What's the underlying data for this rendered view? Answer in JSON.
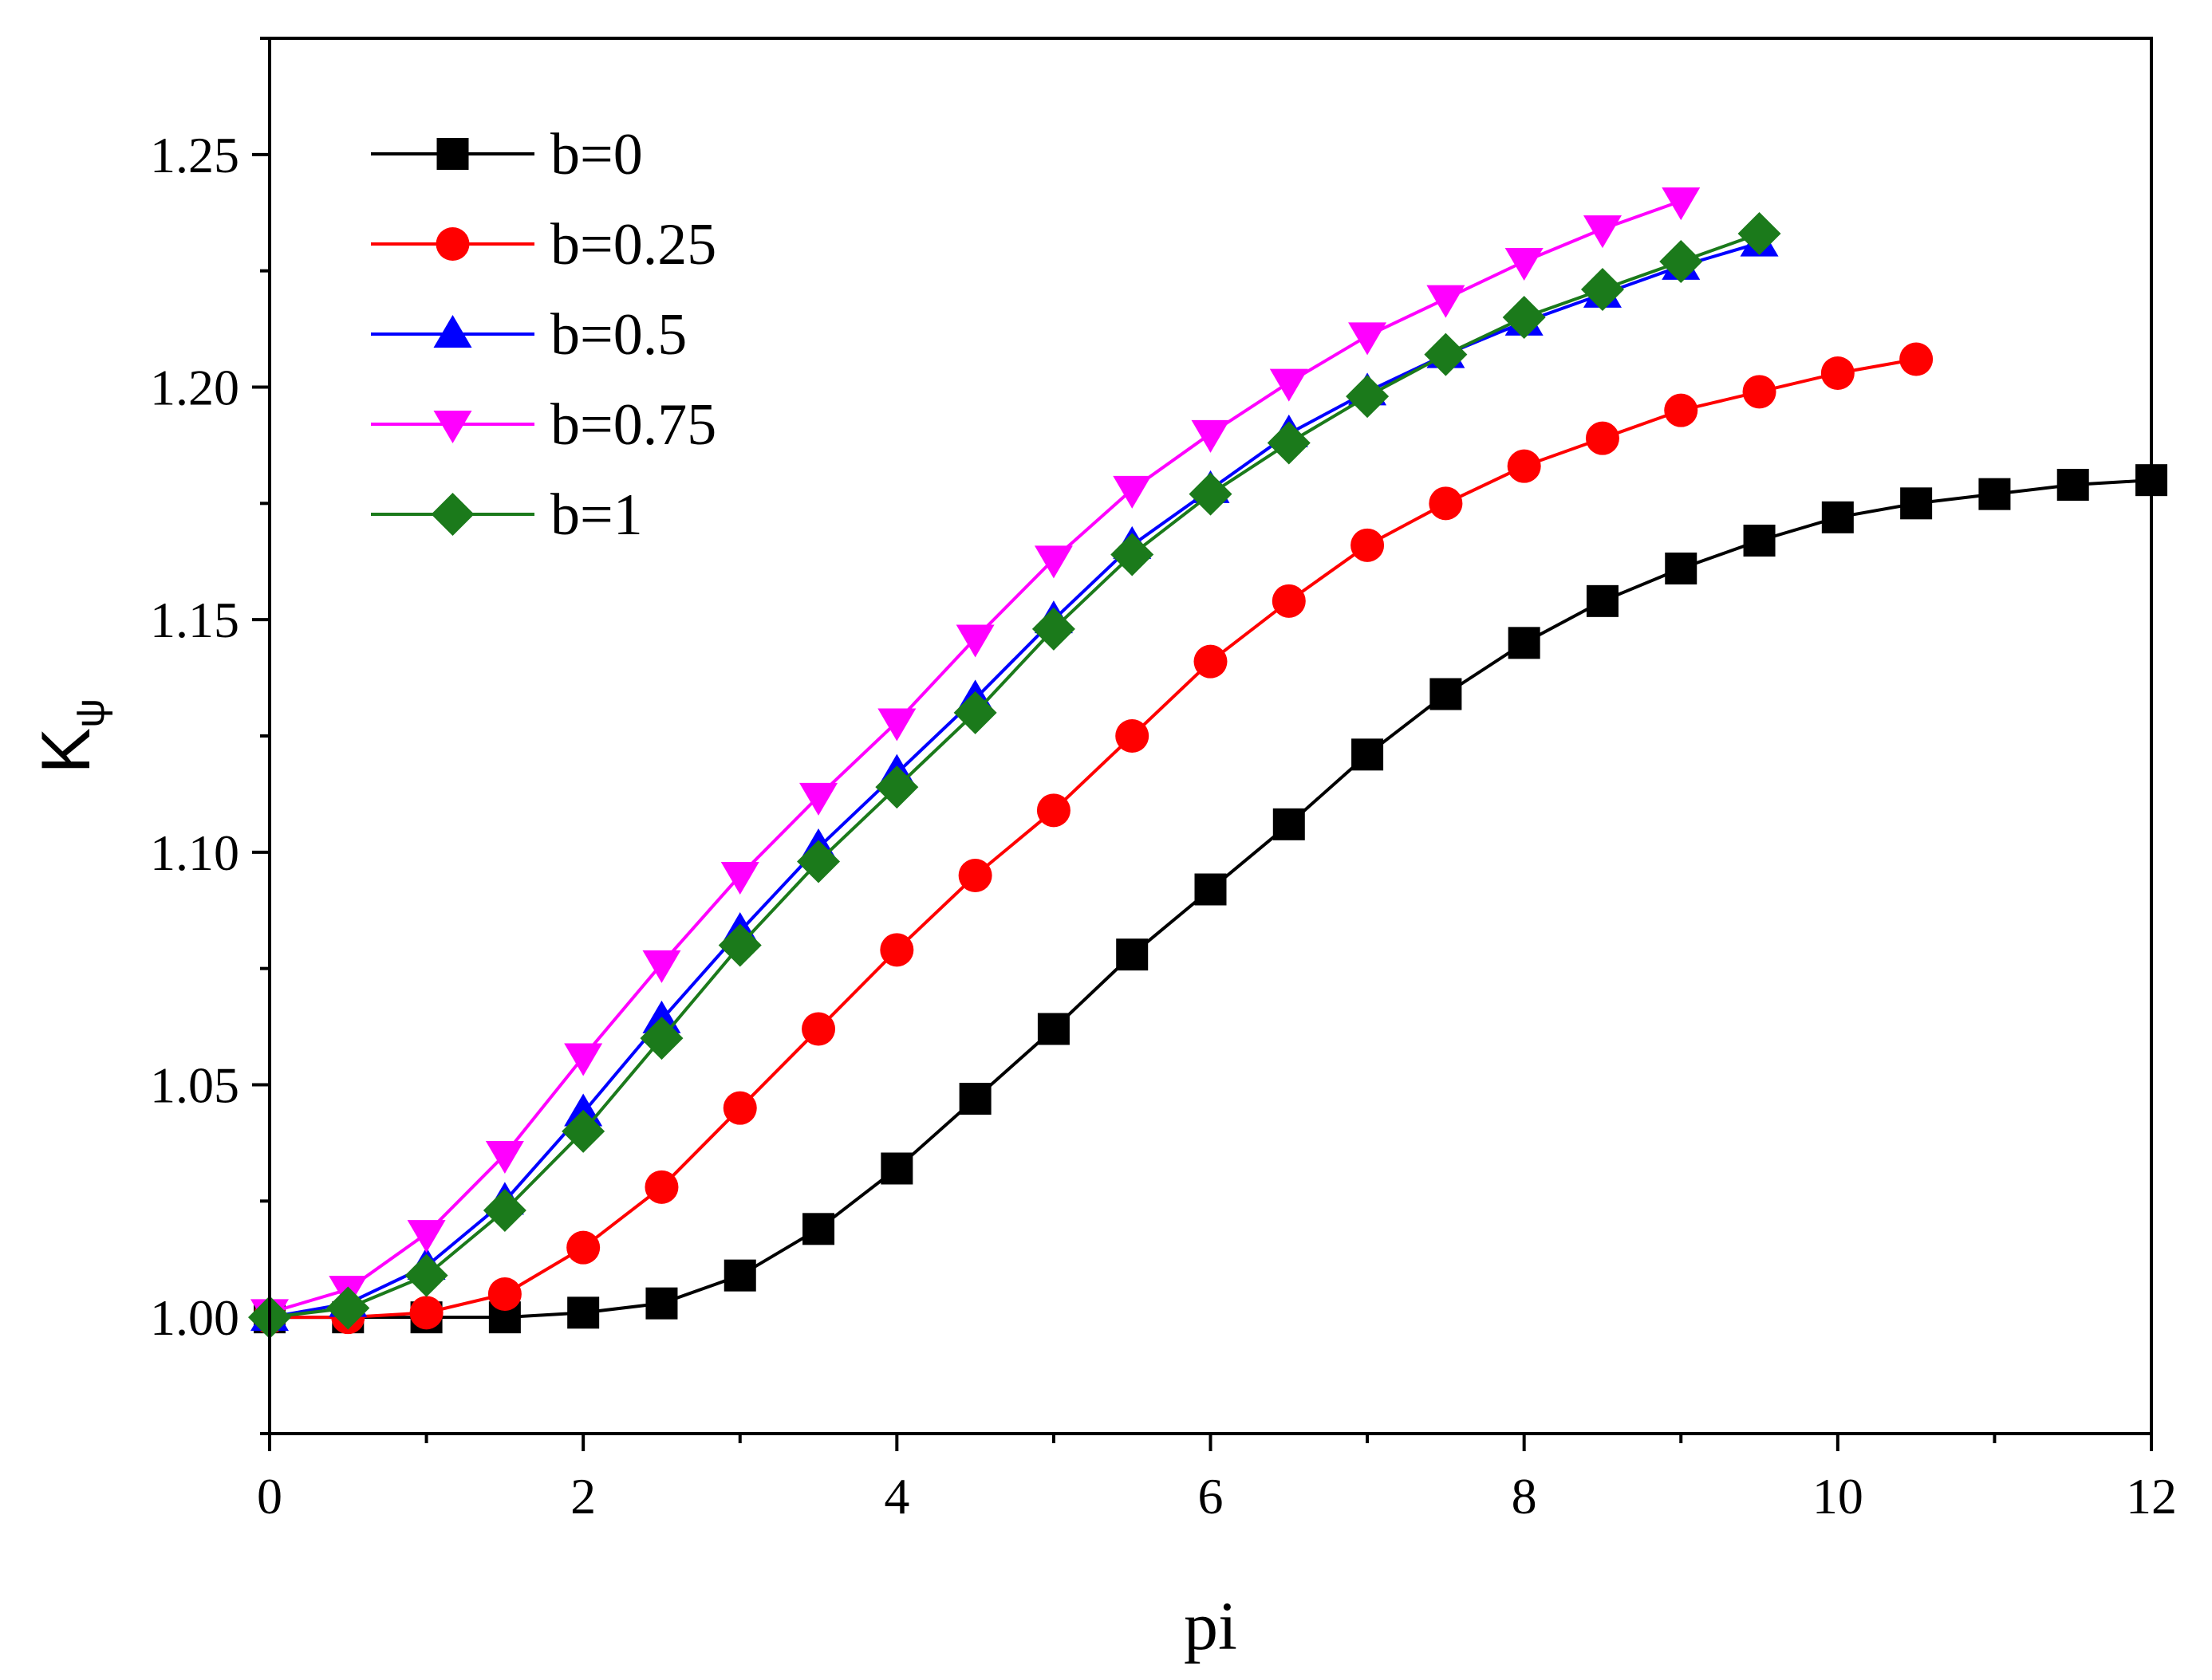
{
  "chart_data": {
    "type": "line",
    "title": "",
    "xlabel": "pi",
    "ylabel": "K",
    "ylabel_subscript": "ψ",
    "xlim": [
      0,
      12
    ],
    "ylim": [
      0.975,
      1.275
    ],
    "xticks": [
      0,
      2,
      4,
      6,
      8,
      10,
      12
    ],
    "xtick_labels": [
      "0",
      "2",
      "4",
      "6",
      "8",
      "10",
      "12"
    ],
    "yticks": [
      1.0,
      1.05,
      1.1,
      1.15,
      1.2,
      1.25
    ],
    "ytick_labels": [
      "1.00",
      "1.05",
      "1.10",
      "1.15",
      "1.20",
      "1.25"
    ],
    "grid": false,
    "legend_position": "top-left",
    "series": [
      {
        "name": "b=0",
        "color": "#000000",
        "marker": "square",
        "x": [
          0,
          0.5,
          1,
          1.5,
          2,
          2.5,
          3,
          3.5,
          4,
          4.5,
          5,
          5.5,
          6,
          6.5,
          7,
          7.5,
          8,
          8.5,
          9,
          9.5,
          10,
          10.5,
          11,
          11.5,
          12
        ],
        "values": [
          1.0,
          1.0,
          1.0,
          1.0,
          1.001,
          1.003,
          1.009,
          1.019,
          1.032,
          1.047,
          1.062,
          1.078,
          1.092,
          1.106,
          1.121,
          1.134,
          1.145,
          1.154,
          1.161,
          1.167,
          1.172,
          1.175,
          1.177,
          1.179,
          1.18
        ]
      },
      {
        "name": "b=0.25",
        "color": "#ff0000",
        "marker": "circle",
        "x": [
          0,
          0.5,
          1,
          1.5,
          2,
          2.5,
          3,
          3.5,
          4,
          4.5,
          5,
          5.5,
          6,
          6.5,
          7,
          7.5,
          8,
          8.5,
          9,
          9.5,
          10,
          10.5
        ],
        "values": [
          1.0,
          1.0,
          1.001,
          1.005,
          1.015,
          1.028,
          1.045,
          1.062,
          1.079,
          1.095,
          1.109,
          1.125,
          1.141,
          1.154,
          1.166,
          1.175,
          1.183,
          1.189,
          1.195,
          1.199,
          1.203,
          1.206
        ]
      },
      {
        "name": "b=0.5",
        "color": "#0000ff",
        "marker": "triangle-up",
        "x": [
          0,
          0.5,
          1,
          1.5,
          2,
          2.5,
          3,
          3.5,
          4,
          4.5,
          5,
          5.5,
          6,
          6.5,
          7,
          7.5,
          8,
          8.5,
          9,
          9.5
        ],
        "values": [
          1.0,
          1.003,
          1.011,
          1.025,
          1.044,
          1.064,
          1.083,
          1.101,
          1.117,
          1.133,
          1.15,
          1.166,
          1.178,
          1.19,
          1.199,
          1.207,
          1.214,
          1.22,
          1.226,
          1.231
        ]
      },
      {
        "name": "b=0.75",
        "color": "#ff00ff",
        "marker": "triangle-down",
        "x": [
          0,
          0.5,
          1,
          1.5,
          2,
          2.5,
          3,
          3.5,
          4,
          4.5,
          5,
          5.5,
          6,
          6.5,
          7,
          7.5,
          8,
          8.5,
          9
        ],
        "values": [
          1.001,
          1.006,
          1.018,
          1.035,
          1.056,
          1.076,
          1.095,
          1.112,
          1.128,
          1.146,
          1.163,
          1.178,
          1.19,
          1.201,
          1.211,
          1.219,
          1.227,
          1.234,
          1.24
        ]
      },
      {
        "name": "b=1",
        "color": "#1b7a1b",
        "marker": "diamond",
        "x": [
          0,
          0.5,
          1,
          1.5,
          2,
          2.5,
          3,
          3.5,
          4,
          4.5,
          5,
          5.5,
          6,
          6.5,
          7,
          7.5,
          8,
          8.5,
          9,
          9.5
        ],
        "values": [
          1.0,
          1.002,
          1.009,
          1.023,
          1.04,
          1.06,
          1.08,
          1.098,
          1.114,
          1.13,
          1.148,
          1.164,
          1.177,
          1.188,
          1.198,
          1.207,
          1.215,
          1.221,
          1.227,
          1.233
        ]
      }
    ]
  }
}
